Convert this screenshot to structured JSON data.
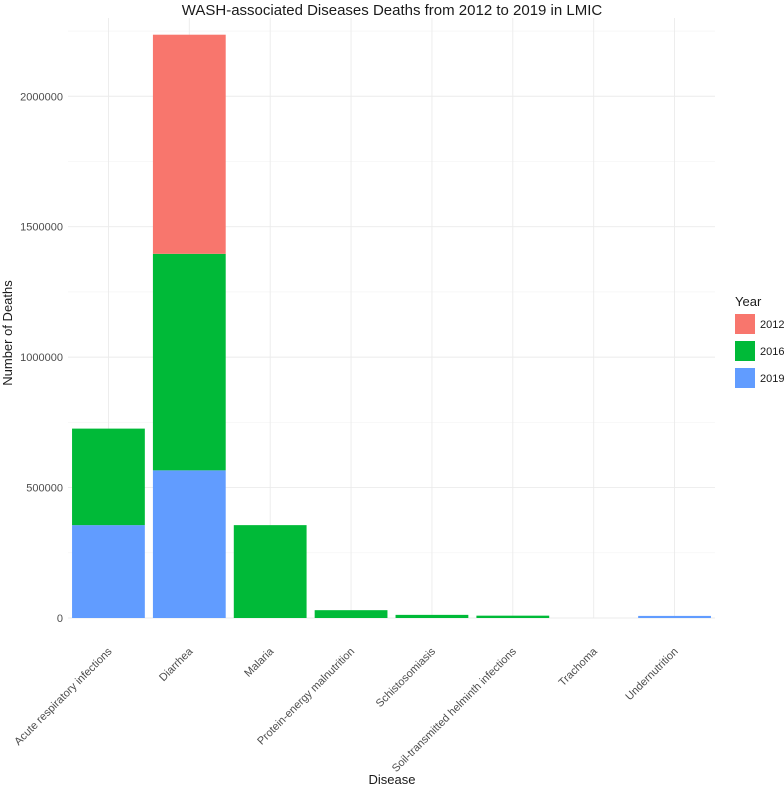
{
  "chart_data": {
    "type": "bar",
    "stacked": true,
    "title": "WASH-associated Diseases Deaths from 2012 to 2019 in LMIC",
    "xlabel": "Disease",
    "ylabel": "Number of Deaths",
    "ylim": [
      0,
      2300000
    ],
    "yticks": [
      0,
      500000,
      1000000,
      1500000,
      2000000
    ],
    "ytick_labels": [
      "0",
      "500000",
      "1000000",
      "1500000",
      "2000000"
    ],
    "grid": true,
    "legend": {
      "title": "Year",
      "placement": "right"
    },
    "categories": [
      "Acute respiratory infections",
      "Diarrhea",
      "Malaria",
      "Protein-energy malnutrition",
      "Schistosomiasis",
      "Soil-transmitted helminth infections",
      "Trachoma",
      "Undernutrition"
    ],
    "series": [
      {
        "name": "2012",
        "color": "#F8766D",
        "values": [
          0,
          840000,
          0,
          0,
          0,
          0,
          0,
          0
        ]
      },
      {
        "name": "2016",
        "color": "#00BA38",
        "values": [
          370000,
          830000,
          356000,
          30000,
          12000,
          9000,
          0,
          0
        ]
      },
      {
        "name": "2019",
        "color": "#619CFF",
        "values": [
          356000,
          566000,
          0,
          0,
          0,
          0,
          0,
          8000
        ]
      }
    ]
  }
}
